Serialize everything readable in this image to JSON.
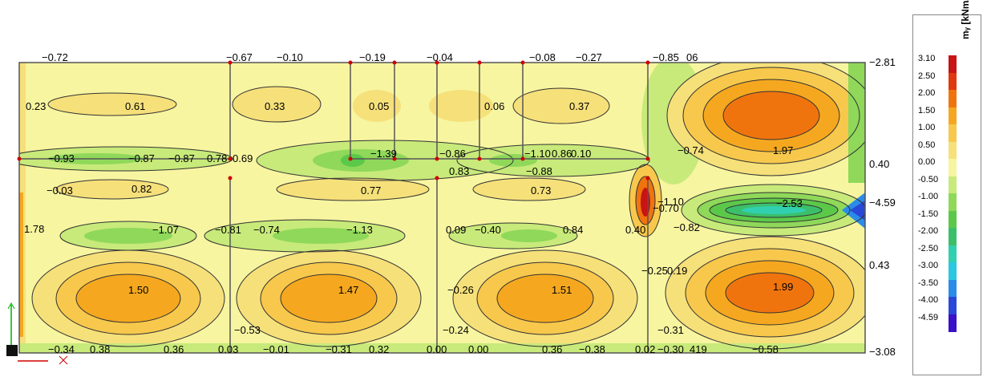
{
  "legend": {
    "title": "mᵧ [kNm/m]",
    "levels": [
      {
        "value": "3.10",
        "color": "#c81414"
      },
      {
        "value": "2.50",
        "color": "#e0380f"
      },
      {
        "value": "2.00",
        "color": "#f0740e"
      },
      {
        "value": "1.50",
        "color": "#f5a81f"
      },
      {
        "value": "1.00",
        "color": "#f7c84c"
      },
      {
        "value": "0.50",
        "color": "#f6e07a"
      },
      {
        "value": "0.00",
        "color": "#f7f5a0"
      },
      {
        "value": "-0.50",
        "color": "#c8ea7a"
      },
      {
        "value": "-1.00",
        "color": "#8fd85a"
      },
      {
        "value": "-1.50",
        "color": "#5cc84a"
      },
      {
        "value": "-2.00",
        "color": "#3cbf6a"
      },
      {
        "value": "-2.50",
        "color": "#30d0b0"
      },
      {
        "value": "-3.00",
        "color": "#28c8e0"
      },
      {
        "value": "-3.50",
        "color": "#2a8ce8"
      },
      {
        "value": "-4.00",
        "color": "#2a48d8"
      },
      {
        "value": "-4.59",
        "color": "#3a10c8"
      }
    ]
  },
  "top_labels": [
    "−0.72",
    "−0.67",
    "−0.10",
    "−0.19",
    "−0.04",
    "−0.08",
    "−0.27",
    "−0.85",
    "06"
  ],
  "bottom_labels": [
    "−0.34",
    "0.38",
    "0.36",
    "0.03",
    "−0.01",
    "−0.31",
    "0.32",
    "0.00",
    "0.00",
    "0.36",
    "−0.38",
    "0.02",
    "−0.30",
    "419",
    "−0.58"
  ],
  "right_labels": [
    "−2.81",
    "0.40",
    "−4.59",
    "0.43",
    "−3.08"
  ],
  "field_labels": {
    "r1": [
      "0.23",
      "0.61",
      "0.33",
      "0.05",
      "0.06",
      "0.37"
    ],
    "r2": [
      "−0.93",
      "−0.87",
      "−0.87",
      "0.78",
      "0.69",
      "−1.39",
      "−0.86",
      "−1.10",
      "0.86",
      "0.10",
      "−0.88",
      "−0.74",
      "1.97"
    ],
    "r3": [
      "−0.03",
      "0.82",
      "0.77",
      "0.83",
      "0.73",
      "−1.10",
      "−2.53"
    ],
    "r4": [
      "1.78",
      "−1.07",
      "−0.81",
      "−0.74",
      "−1.13",
      "0.09",
      "−0.40",
      "0.84",
      "0.40",
      "−0.70",
      "−0.82"
    ],
    "r5": [
      "1.50",
      "1.47",
      "−0.26",
      "1.51",
      "−0.25",
      "0.19",
      "1.99",
      "−0.53",
      "−0.24",
      "−0.31"
    ]
  }
}
